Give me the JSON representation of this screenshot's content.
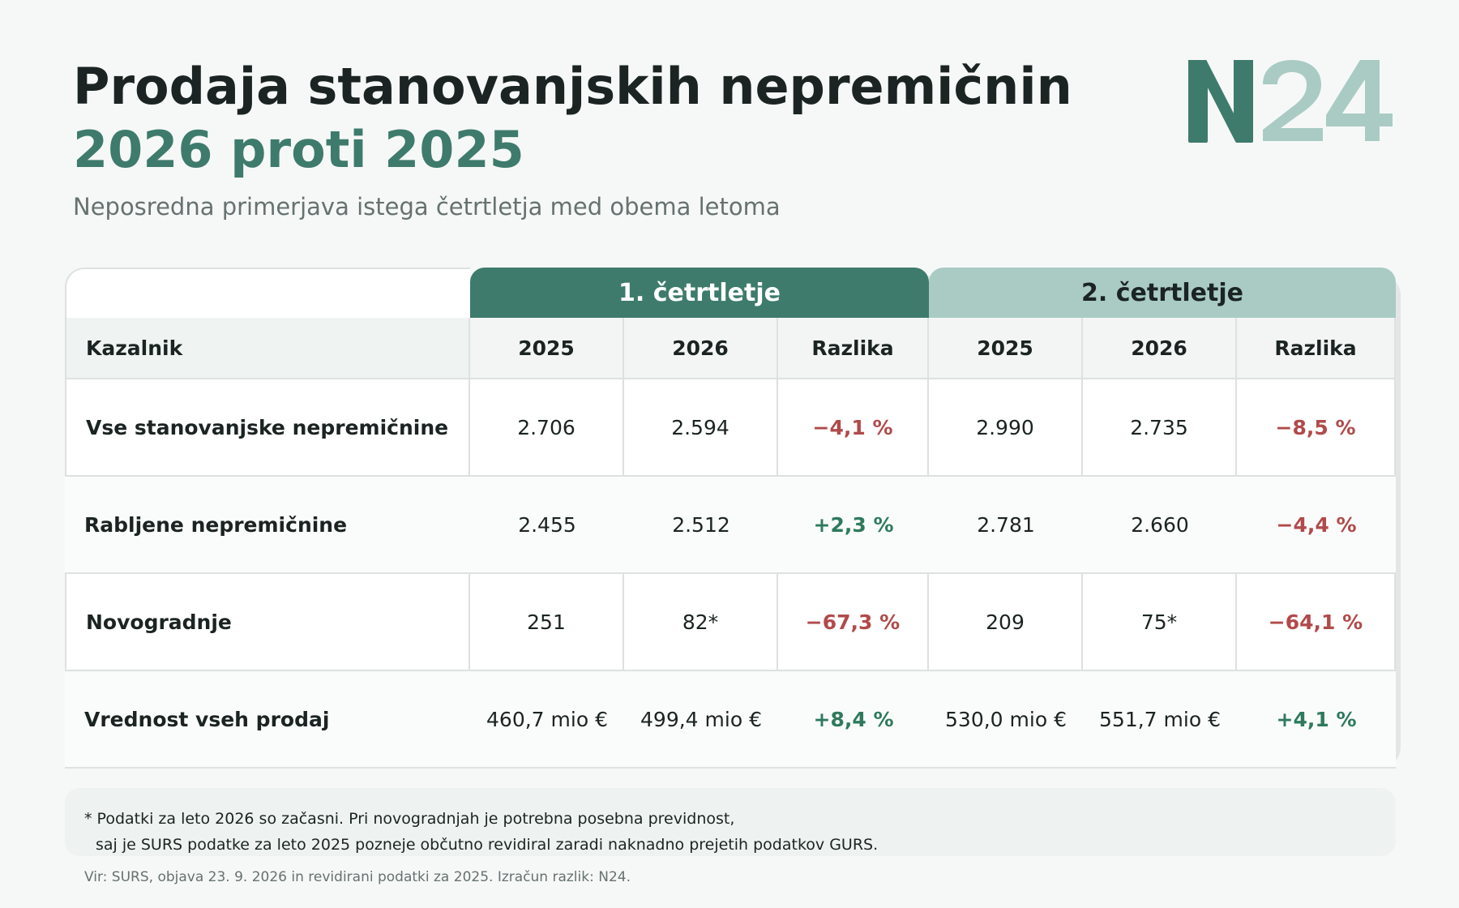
{
  "header": {
    "title": "Prodaja stanovanjskih nepremičnin",
    "title_accent": "2026 proti 2025",
    "subtitle": "Neposredna primerjava istega četrtletja med obema letoma"
  },
  "logo": {
    "text_n": "N",
    "text_24": "24",
    "color_primary": "#3e7b6c",
    "color_secondary": "#a9cbc4"
  },
  "table": {
    "groups": [
      {
        "label": "1. četrtletje",
        "color": "#3e7b6c"
      },
      {
        "label": "2. četrtletje",
        "color": "#a9cbc4"
      }
    ],
    "columns": [
      "Kazalnik",
      "2025",
      "2026",
      "Razlika",
      "2025",
      "2026",
      "Razlika"
    ],
    "rows": [
      {
        "label": "Vse stanovanjske nepremičnine",
        "q1_2025": "2.706",
        "q1_2026": "2.594",
        "q1_diff": "−4,1 %",
        "q2_2025": "2.990",
        "q2_2026": "2.735",
        "q2_diff": "−8,5 %"
      },
      {
        "label": "Rabljene nepremičnine",
        "q1_2025": "2.455",
        "q1_2026": "2.512",
        "q1_diff": "+2,3 %",
        "q2_2025": "2.781",
        "q2_2026": "2.660",
        "q2_diff": "−4,4 %"
      },
      {
        "label": "Novogradnje",
        "q1_2025": "251",
        "q1_2026": "82*",
        "q1_diff": "−67,3 %",
        "q2_2025": "209",
        "q2_2026": "75*",
        "q2_diff": "−64,1 %"
      },
      {
        "label": "Vrednost vseh prodaj",
        "q1_2025": "460,7 mio €",
        "q1_2026": "499,4 mio €",
        "q1_diff": "+8,4 %",
        "q2_2025": "530,0 mio €",
        "q2_2026": "551,7 mio €",
        "q2_diff": "+4,1 %"
      }
    ],
    "colors": {
      "negative": "#b14a4a",
      "positive": "#2f7a5e"
    }
  },
  "footnote": {
    "line1": "* Podatki za leto 2026 so začasni. Pri novogradnjah je potrebna posebna previdnost,",
    "line2": "saj je SURS podatke za leto 2025 pozneje občutno revidiral zaradi naknadno prejetih podatkov GURS."
  },
  "source": "Vir: SURS, objava 23. 9. 2026 in revidirani podatki za 2025. Izračun razlik: N24."
}
